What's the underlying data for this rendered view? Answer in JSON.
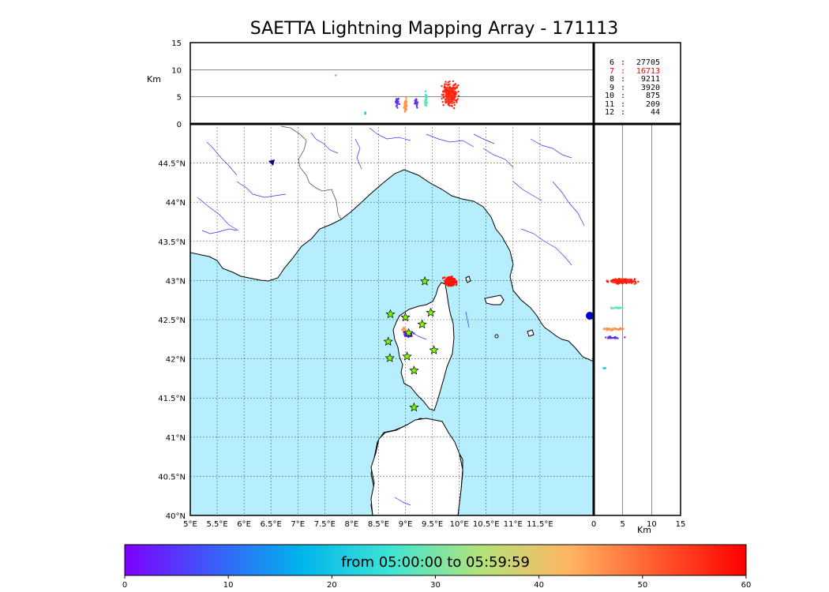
{
  "title": "SAETTA Lightning Mapping Array - 171113",
  "colorbar": {
    "label": "from 05:00:00 to 05:59:59",
    "ticks": [
      "0",
      "10",
      "20",
      "30",
      "40",
      "50",
      "60"
    ],
    "range": [
      0,
      60
    ],
    "colors": [
      "#7f00ff",
      "#3b5dfa",
      "#00b5eb",
      "#3fe4d4",
      "#b2e37a",
      "#ffb561",
      "#ff5a2e",
      "#ff0000"
    ]
  },
  "units": {
    "km_top": "Km",
    "km_right": "Km"
  },
  "colors": {
    "sea": "#b7eefe",
    "river": "#3333ee",
    "border": "#555555",
    "coast": "#000000",
    "star": "#7fff00"
  },
  "counts": [
    {
      "stations": "6",
      "sep": ":",
      "count": "27705",
      "highlight": false
    },
    {
      "stations": "7",
      "sep": ":",
      "count": "16713",
      "highlight": true
    },
    {
      "stations": "8",
      "sep": ":",
      "count": "9211",
      "highlight": false
    },
    {
      "stations": "9",
      "sep": ":",
      "count": "3920",
      "highlight": false
    },
    {
      "stations": "10",
      "sep": ":",
      "count": "875",
      "highlight": false
    },
    {
      "stations": "11",
      "sep": ":",
      "count": "209",
      "highlight": false
    },
    {
      "stations": "12",
      "sep": ":",
      "count": "44",
      "highlight": false
    }
  ],
  "chart_data": {
    "type": "scatter",
    "title": "SAETTA Lightning Mapping Array - 171113",
    "map": {
      "lon_range": [
        5,
        12.5
      ],
      "lat_range": [
        40,
        45
      ],
      "lon_ticks": [
        "5°E",
        "5.5°E",
        "6°E",
        "6.5°E",
        "7°E",
        "7.5°E",
        "8°E",
        "8.5°E",
        "9°E",
        "9.5°E",
        "10°E",
        "10.5°E",
        "11°E",
        "11.5°E"
      ],
      "lon_tick_values": [
        5,
        5.5,
        6,
        6.5,
        7,
        7.5,
        8,
        8.5,
        9,
        9.5,
        10,
        10.5,
        11,
        11.5
      ],
      "lat_ticks": [
        "40°N",
        "40.5°N",
        "41°N",
        "41.5°N",
        "42°N",
        "42.5°N",
        "43°N",
        "43.5°N",
        "44°N",
        "44.5°N"
      ],
      "lat_tick_values": [
        40,
        40.5,
        41,
        41.5,
        42,
        42.5,
        43,
        43.5,
        44,
        44.5
      ],
      "grid": "dotted",
      "stations": [
        [
          9.36,
          42.99
        ],
        [
          8.72,
          42.57
        ],
        [
          9.0,
          42.53
        ],
        [
          9.47,
          42.59
        ],
        [
          9.31,
          42.44
        ],
        [
          8.68,
          42.22
        ],
        [
          9.06,
          42.33
        ],
        [
          9.53,
          42.11
        ],
        [
          8.71,
          42.01
        ],
        [
          9.03,
          42.03
        ],
        [
          9.16,
          41.85
        ],
        [
          9.16,
          41.38
        ]
      ],
      "clusters": [
        {
          "name": "cap-corse-cell",
          "lon": 9.83,
          "lat": 42.99,
          "rlon": 0.14,
          "rlat": 0.08,
          "time_min": 58,
          "n": 160
        },
        {
          "name": "central-corsica-orange",
          "lon": 8.98,
          "lat": 42.37,
          "rlon": 0.05,
          "rlat": 0.05,
          "time_min": 45,
          "n": 30
        },
        {
          "name": "central-corsica-violet",
          "lon": 9.05,
          "lat": 42.3,
          "rlon": 0.13,
          "rlat": 0.05,
          "time_min": 4,
          "n": 30
        }
      ]
    },
    "altitude_lon": {
      "ylabel": "Km",
      "ylim": [
        0,
        15
      ],
      "yticks": [
        "0",
        "5",
        "10",
        "15"
      ],
      "ytick_values": [
        0,
        5,
        10,
        15
      ],
      "clusters": [
        {
          "lon": 9.83,
          "alt_mean": 5.5,
          "alt_spread": 3.0,
          "lon_spread": 0.2,
          "time_min": 56,
          "n": 260
        },
        {
          "lon": 9.38,
          "alt_mean": 4.5,
          "alt_spread": 2.0,
          "lon_spread": 0.03,
          "time_min": 28,
          "n": 40
        },
        {
          "lon": 9.0,
          "alt_mean": 3.5,
          "alt_spread": 2.3,
          "lon_spread": 0.03,
          "time_min": 46,
          "n": 50
        },
        {
          "lon": 8.85,
          "alt_mean": 4.0,
          "alt_spread": 1.2,
          "lon_spread": 0.05,
          "time_min": 4,
          "n": 25
        },
        {
          "lon": 9.2,
          "alt_mean": 4.0,
          "alt_spread": 1.2,
          "lon_spread": 0.04,
          "time_min": 4,
          "n": 20
        },
        {
          "lon": 8.25,
          "alt_mean": 2.0,
          "alt_spread": 0.5,
          "lon_spread": 0.01,
          "time_min": 20,
          "n": 4
        },
        {
          "lon": 7.7,
          "alt_mean": 9.0,
          "alt_spread": 0.2,
          "lon_spread": 0.01,
          "time_min": 48,
          "n": 1
        }
      ]
    },
    "altitude_lat": {
      "xlabel": "Km",
      "xlim": [
        0,
        15
      ],
      "xticks": [
        "0",
        "5",
        "10",
        "15"
      ],
      "xtick_values": [
        0,
        5,
        10,
        15
      ],
      "clusters": [
        {
          "lat": 42.99,
          "alt_mean": 5.0,
          "alt_spread": 3.2,
          "lat_spread": 0.04,
          "time_min": 57,
          "n": 230
        },
        {
          "lat": 42.65,
          "alt_mean": 4.0,
          "alt_spread": 1.8,
          "lat_spread": 0.01,
          "time_min": 28,
          "n": 30
        },
        {
          "lat": 42.38,
          "alt_mean": 3.5,
          "alt_spread": 2.5,
          "lat_spread": 0.02,
          "time_min": 46,
          "n": 40
        },
        {
          "lat": 42.27,
          "alt_mean": 3.5,
          "alt_spread": 2.5,
          "lat_spread": 0.02,
          "time_min": 4,
          "n": 25
        },
        {
          "lat": 41.88,
          "alt_mean": 2.0,
          "alt_spread": 0.5,
          "lat_spread": 0.005,
          "time_min": 20,
          "n": 4
        }
      ]
    }
  }
}
